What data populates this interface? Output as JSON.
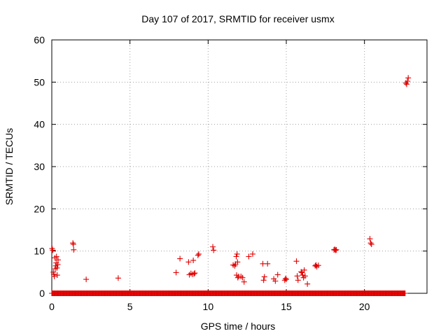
{
  "chart_data": {
    "type": "scatter",
    "title": "Day 107 of 2017, SRMTID for receiver usmx",
    "xlabel": "GPS time / hours",
    "ylabel": "SRMTID / TECUs",
    "xlim": [
      0,
      24
    ],
    "ylim": [
      0,
      60
    ],
    "xticks": [
      0,
      5,
      10,
      15,
      20
    ],
    "yticks": [
      0,
      10,
      20,
      30,
      40,
      50,
      60
    ],
    "xtick_labels": [
      "0",
      "5",
      "10",
      "15",
      "20"
    ],
    "ytick_labels": [
      "0",
      "10",
      "20",
      "30",
      "40",
      "50",
      "60"
    ],
    "grid": true,
    "marker": "+",
    "series_color": "#e00000",
    "baseline": {
      "y": 0,
      "x_from": 0,
      "x_to": 22.6,
      "step": 0.04
    },
    "points": [
      [
        0.02,
        10.6
      ],
      [
        0.06,
        10.2
      ],
      [
        0.1,
        5.0
      ],
      [
        0.13,
        4.5
      ],
      [
        0.16,
        4.0
      ],
      [
        0.2,
        8.4
      ],
      [
        0.22,
        5.8
      ],
      [
        0.25,
        6.5
      ],
      [
        0.28,
        7.2
      ],
      [
        0.3,
        8.7
      ],
      [
        0.33,
        6.0
      ],
      [
        0.35,
        4.3
      ],
      [
        0.38,
        6.8
      ],
      [
        0.4,
        7.9
      ],
      [
        1.35,
        11.9
      ],
      [
        1.38,
        11.6
      ],
      [
        1.4,
        10.3
      ],
      [
        2.2,
        3.3
      ],
      [
        4.25,
        3.6
      ],
      [
        7.95,
        4.9
      ],
      [
        8.2,
        8.2
      ],
      [
        8.75,
        7.4
      ],
      [
        8.8,
        4.4
      ],
      [
        8.9,
        4.7
      ],
      [
        9.0,
        4.5
      ],
      [
        9.05,
        7.8
      ],
      [
        9.1,
        4.6
      ],
      [
        9.15,
        4.8
      ],
      [
        9.35,
        9.0
      ],
      [
        9.4,
        9.3
      ],
      [
        10.3,
        11.0
      ],
      [
        10.35,
        10.2
      ],
      [
        11.6,
        6.7
      ],
      [
        11.7,
        6.5
      ],
      [
        11.75,
        6.9
      ],
      [
        11.8,
        8.7
      ],
      [
        11.82,
        4.3
      ],
      [
        11.85,
        9.3
      ],
      [
        11.88,
        7.4
      ],
      [
        11.9,
        3.7
      ],
      [
        11.95,
        4.0
      ],
      [
        12.1,
        4.0
      ],
      [
        12.2,
        3.7
      ],
      [
        12.3,
        2.7
      ],
      [
        12.6,
        8.7
      ],
      [
        12.85,
        9.3
      ],
      [
        13.5,
        7.0
      ],
      [
        13.55,
        3.1
      ],
      [
        13.6,
        3.9
      ],
      [
        13.8,
        7.0
      ],
      [
        14.2,
        3.4
      ],
      [
        14.3,
        2.9
      ],
      [
        14.45,
        4.4
      ],
      [
        14.9,
        3.1
      ],
      [
        14.95,
        3.5
      ],
      [
        15.0,
        3.3
      ],
      [
        15.65,
        7.6
      ],
      [
        15.7,
        4.1
      ],
      [
        15.75,
        3.1
      ],
      [
        15.95,
        5.1
      ],
      [
        16.0,
        4.9
      ],
      [
        16.05,
        4.3
      ],
      [
        16.1,
        3.7
      ],
      [
        16.15,
        5.5
      ],
      [
        16.2,
        4.1
      ],
      [
        16.35,
        2.2
      ],
      [
        16.85,
        6.5
      ],
      [
        16.9,
        6.7
      ],
      [
        16.95,
        6.3
      ],
      [
        17.05,
        6.6
      ],
      [
        18.05,
        10.3
      ],
      [
        18.1,
        10.4
      ],
      [
        18.15,
        10.2
      ],
      [
        18.2,
        10.3
      ],
      [
        20.35,
        12.9
      ],
      [
        20.4,
        11.9
      ],
      [
        20.45,
        11.6
      ],
      [
        22.65,
        49.8
      ],
      [
        22.7,
        49.5
      ],
      [
        22.75,
        50.2
      ],
      [
        22.8,
        51.0
      ]
    ]
  }
}
